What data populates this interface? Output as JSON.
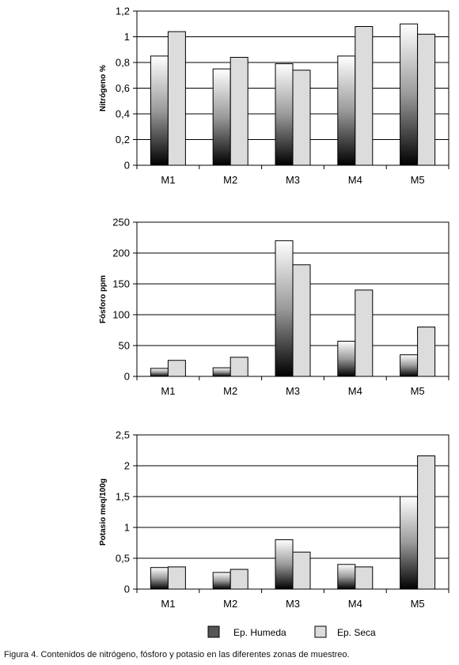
{
  "chart_data": [
    {
      "type": "bar",
      "categories": [
        "M1",
        "M2",
        "M3",
        "M4",
        "M5"
      ],
      "series": [
        {
          "name": "Ep. Humeda",
          "values": [
            0.85,
            0.75,
            0.79,
            0.85,
            1.1
          ]
        },
        {
          "name": "Ep. Seca",
          "values": [
            1.04,
            0.84,
            0.74,
            1.08,
            1.02
          ]
        }
      ],
      "ylabel": "Nitrógeno %",
      "ylim": [
        0,
        1.2
      ],
      "yticks": [
        "0",
        "0,2",
        "0,4",
        "0,6",
        "0,8",
        "1",
        "1,2"
      ],
      "grid": true
    },
    {
      "type": "bar",
      "categories": [
        "M1",
        "M2",
        "M3",
        "M4",
        "M5"
      ],
      "series": [
        {
          "name": "Ep. Humeda",
          "values": [
            13,
            14,
            220,
            57,
            35
          ]
        },
        {
          "name": "Ep. Seca",
          "values": [
            26,
            31,
            181,
            140,
            80
          ]
        }
      ],
      "ylabel": "Fósforo ppm",
      "ylim": [
        0,
        250
      ],
      "yticks": [
        "0",
        "50",
        "100",
        "150",
        "200",
        "250"
      ],
      "grid": true
    },
    {
      "type": "bar",
      "categories": [
        "M1",
        "M2",
        "M3",
        "M4",
        "M5"
      ],
      "series": [
        {
          "name": "Ep. Humeda",
          "values": [
            0.35,
            0.27,
            0.8,
            0.4,
            1.5
          ]
        },
        {
          "name": "Ep. Seca",
          "values": [
            0.36,
            0.32,
            0.6,
            0.36,
            2.16
          ]
        }
      ],
      "ylabel": "Potasio meq/100g",
      "ylim": [
        0,
        2.5
      ],
      "yticks": [
        "0",
        "0,5",
        "1",
        "1,5",
        "2",
        "2,5"
      ],
      "grid": true
    }
  ],
  "legend": {
    "placement": "bottom",
    "items": [
      {
        "label": "Ep. Humeda",
        "color": "#555555"
      },
      {
        "label": "Ep. Seca",
        "color": "#dcdcdc"
      }
    ]
  },
  "caption": "Figura 4. Contenidos de nitrógeno, fósforo y potasio en las diferentes zonas de muestreo."
}
